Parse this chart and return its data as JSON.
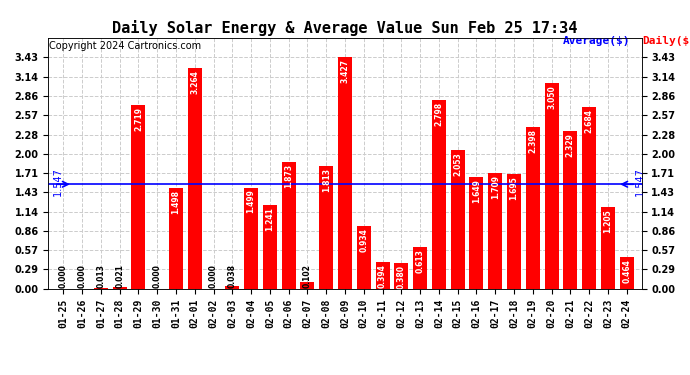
{
  "title": "Daily Solar Energy & Average Value Sun Feb 25 17:34",
  "copyright": "Copyright 2024 Cartronics.com",
  "categories": [
    "01-25",
    "01-26",
    "01-27",
    "01-28",
    "01-29",
    "01-30",
    "01-31",
    "02-01",
    "02-02",
    "02-03",
    "02-04",
    "02-05",
    "02-06",
    "02-07",
    "02-08",
    "02-09",
    "02-10",
    "02-11",
    "02-12",
    "02-13",
    "02-14",
    "02-15",
    "02-16",
    "02-17",
    "02-18",
    "02-19",
    "02-20",
    "02-21",
    "02-22",
    "02-23",
    "02-24"
  ],
  "values": [
    0.0,
    0.0,
    0.013,
    0.021,
    2.719,
    0.0,
    1.498,
    3.264,
    0.0,
    0.038,
    1.499,
    1.241,
    1.873,
    0.102,
    1.813,
    3.427,
    0.934,
    0.394,
    0.38,
    0.613,
    2.798,
    2.053,
    1.649,
    1.709,
    1.695,
    2.398,
    3.05,
    2.329,
    2.684,
    1.205,
    0.464
  ],
  "average": 1.547,
  "bar_color": "#ff0000",
  "average_line_color": "#0000ff",
  "average_label_color": "#0000ff",
  "daily_label_color": "#ff0000",
  "background_color": "#ffffff",
  "grid_color": "#cccccc",
  "ylim": [
    0.0,
    3.72
  ],
  "yticks": [
    0.0,
    0.29,
    0.57,
    0.86,
    1.14,
    1.43,
    1.71,
    2.0,
    2.28,
    2.57,
    2.86,
    3.14,
    3.43
  ],
  "title_fontsize": 11,
  "copyright_fontsize": 7,
  "tick_fontsize": 7,
  "value_fontsize": 5.5,
  "avg_label_fontsize": 7
}
